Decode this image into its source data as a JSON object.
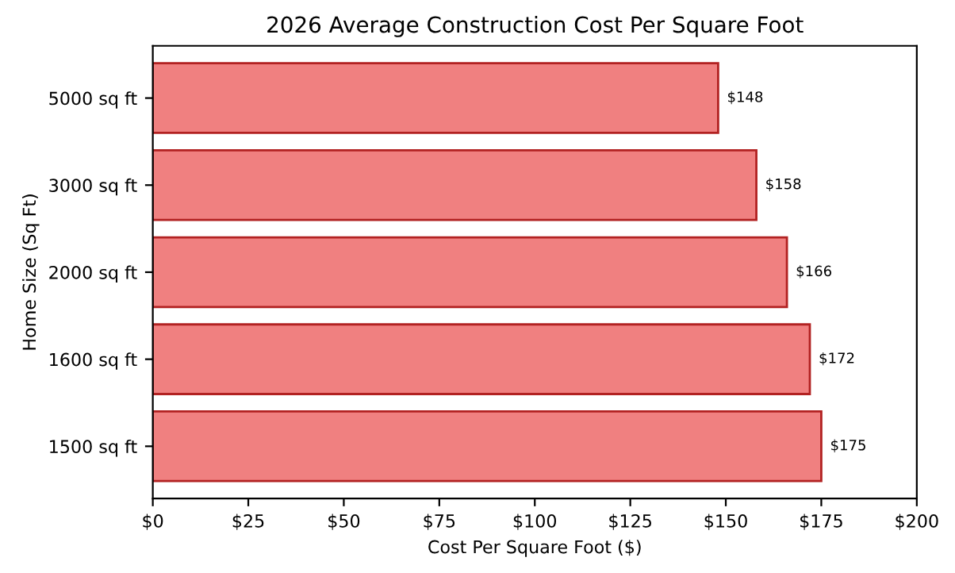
{
  "chart_data": {
    "type": "bar",
    "orientation": "horizontal",
    "title": "2026 Average Construction Cost Per Square Foot",
    "xlabel": "Cost Per Square Foot ($)",
    "ylabel": "Home Size (Sq Ft)",
    "categories": [
      "5000 sq ft",
      "3000 sq ft",
      "2000 sq ft",
      "1600 sq ft",
      "1500 sq ft"
    ],
    "values": [
      148,
      158,
      166,
      172,
      175
    ],
    "value_labels": [
      "$148",
      "$158",
      "$166",
      "$172",
      "$175"
    ],
    "color": "#f08080",
    "xlim": [
      0,
      200
    ],
    "xticks": [
      {
        "value": 0,
        "label": "$0"
      },
      {
        "value": 25,
        "label": "$25"
      },
      {
        "value": 50,
        "label": "$50"
      },
      {
        "value": 75,
        "label": "$75"
      },
      {
        "value": 100,
        "label": "$100"
      },
      {
        "value": 125,
        "label": "$125"
      },
      {
        "value": 150,
        "label": "$150"
      },
      {
        "value": 175,
        "label": "$175"
      },
      {
        "value": 200,
        "label": "$200"
      }
    ],
    "grid": false
  }
}
